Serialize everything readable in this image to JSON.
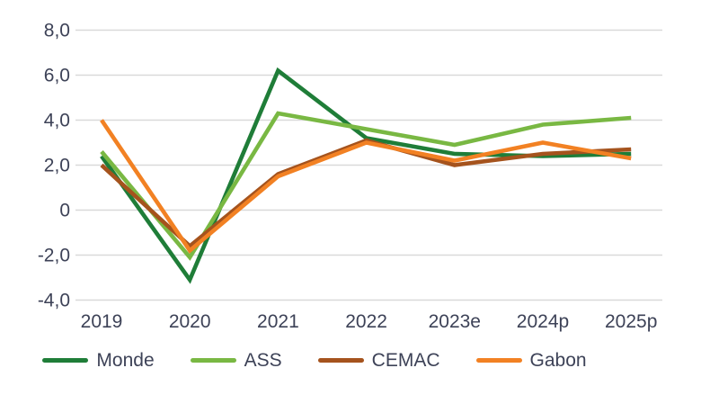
{
  "chart_data": {
    "type": "line",
    "categories": [
      "2019",
      "2020",
      "2021",
      "2022",
      "2023e",
      "2024p",
      "2025p"
    ],
    "series": [
      {
        "name": "Monde",
        "color": "#1f7d38",
        "values": [
          2.4,
          -3.1,
          6.2,
          3.2,
          2.5,
          2.4,
          2.5
        ]
      },
      {
        "name": "ASS",
        "color": "#79b843",
        "values": [
          2.6,
          -2.1,
          4.3,
          3.6,
          2.9,
          3.8,
          4.1
        ]
      },
      {
        "name": "CEMAC",
        "color": "#a5531d",
        "values": [
          2.0,
          -1.6,
          1.6,
          3.1,
          2.0,
          2.5,
          2.7
        ]
      },
      {
        "name": "Gabon",
        "color": "#f28123",
        "values": [
          4.0,
          -1.8,
          1.5,
          3.0,
          2.2,
          3.0,
          2.3
        ]
      }
    ],
    "y_ticks": [
      {
        "value": 8,
        "label": "8,0"
      },
      {
        "value": 6,
        "label": "6,0"
      },
      {
        "value": 4,
        "label": "4,0"
      },
      {
        "value": 2,
        "label": "2,0"
      },
      {
        "value": 0,
        "label": "0"
      },
      {
        "value": -2,
        "label": "-2,0"
      },
      {
        "value": -4,
        "label": "-4,0"
      }
    ],
    "ylim": [
      -4,
      8
    ],
    "grid": "horizontal-only",
    "legend_position": "bottom",
    "number_format": "decimal-comma"
  },
  "styles": {
    "text_color": "#3d4257",
    "grid_color": "#d9d9d9",
    "background": "#ffffff"
  }
}
